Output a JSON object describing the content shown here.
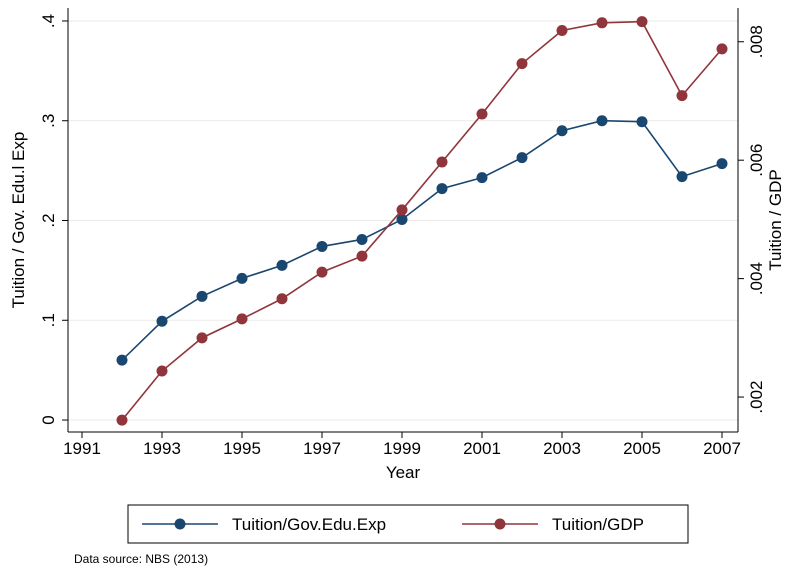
{
  "chart_data": {
    "type": "line",
    "x_label": "Year",
    "y_label": "Tuition / Gov. Edu.l Exp",
    "y2_label": "Tuition / GDP",
    "note": "Data source: NBS (2013)",
    "x": [
      1992,
      1993,
      1994,
      1995,
      1996,
      1997,
      1998,
      1999,
      2000,
      2001,
      2002,
      2003,
      2004,
      2005,
      2006,
      2007
    ],
    "xlim": [
      1990.65,
      2007.4
    ],
    "xticks": [
      1991,
      1993,
      1995,
      1997,
      1999,
      2001,
      2003,
      2005,
      2007
    ],
    "ylim": [
      -0.012,
      0.413
    ],
    "yticks": [
      {
        "value": 0,
        "label": "0"
      },
      {
        "value": 0.1,
        "label": ".1"
      },
      {
        "value": 0.2,
        "label": ".2"
      },
      {
        "value": 0.3,
        "label": ".3"
      },
      {
        "value": 0.4,
        "label": ".4"
      }
    ],
    "y2lim": [
      0.00141,
      0.00857
    ],
    "y2ticks": [
      {
        "value": 0.002,
        "label": ".002"
      },
      {
        "value": 0.004,
        "label": ".004"
      },
      {
        "value": 0.006,
        "label": ".006"
      },
      {
        "value": 0.008,
        "label": ".008"
      }
    ],
    "grid": true,
    "legend": "bottom",
    "series": [
      {
        "name": "Tuition/Gov.Edu.Exp",
        "color": "#1a476f",
        "axis": "y",
        "values": [
          0.06,
          0.099,
          0.124,
          0.142,
          0.155,
          0.174,
          0.181,
          0.201,
          0.232,
          0.243,
          0.263,
          0.29,
          0.3,
          0.299,
          0.244,
          0.257
        ]
      },
      {
        "name": "Tuition/GDP",
        "color": "#90353b",
        "axis": "y2",
        "values": [
          0.00161,
          0.00244,
          0.003,
          0.00332,
          0.00366,
          0.00411,
          0.00438,
          0.00516,
          0.00597,
          0.00678,
          0.00763,
          0.00819,
          0.00832,
          0.00834,
          0.00709,
          0.00788
        ]
      }
    ]
  }
}
